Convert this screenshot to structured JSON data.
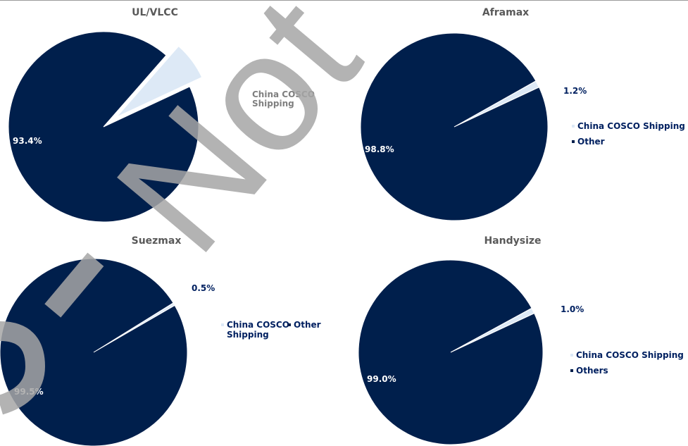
{
  "colors": {
    "china_cosco": "#dde9f6",
    "other": "#001f4c",
    "title": "#595959",
    "label_dark": "#002060",
    "watermark": "#a6a6a6"
  },
  "watermark_text": "Not",
  "chart_data": [
    {
      "type": "pie",
      "title": "UL/VLCC",
      "legend": "right",
      "slices": [
        {
          "name": "China COSCO Shipping",
          "value": 6.6,
          "label": "6.6%",
          "exploded": true
        },
        {
          "name": "",
          "value": 93.4,
          "label": "93.4%"
        }
      ],
      "legend_entries": [
        {
          "name": "China COSCO Shipping",
          "show_marker": false
        }
      ]
    },
    {
      "type": "pie",
      "title": "Aframax",
      "legend": "right",
      "slices": [
        {
          "name": "China COSCO Shipping",
          "value": 1.2,
          "label": "1.2%"
        },
        {
          "name": "Other",
          "value": 98.8,
          "label": "98.8%"
        }
      ],
      "legend_entries": [
        {
          "name": "China COSCO Shipping",
          "show_marker": true
        },
        {
          "name": "Other",
          "show_marker": true
        }
      ]
    },
    {
      "type": "pie",
      "title": "Suezmax",
      "legend": "right",
      "slices": [
        {
          "name": "China COSCO Shipping",
          "value": 0.5,
          "label": "0.5%"
        },
        {
          "name": "Other",
          "value": 99.5,
          "label": "99.5%"
        }
      ],
      "legend_entries": [
        {
          "name": "China COSCO Shipping",
          "show_marker": true
        },
        {
          "name": "Other",
          "show_marker": true
        }
      ]
    },
    {
      "type": "pie",
      "title": "Handysize",
      "legend": "right",
      "slices": [
        {
          "name": "China COSCO Shipping",
          "value": 1.0,
          "label": "1.0%"
        },
        {
          "name": "Others",
          "value": 99.0,
          "label": "99.0%"
        }
      ],
      "legend_entries": [
        {
          "name": "China COSCO Shipping",
          "show_marker": true
        },
        {
          "name": "Others",
          "show_marker": true
        }
      ]
    }
  ]
}
